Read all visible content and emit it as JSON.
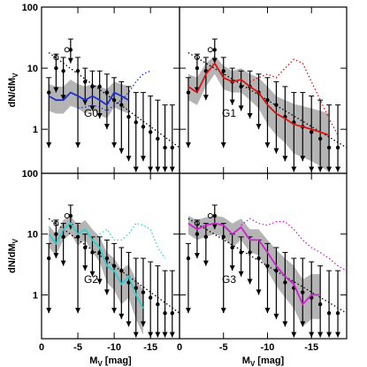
{
  "chart_data": [
    {
      "type": "line",
      "label": "G0",
      "y_label": "dN/dM",
      "y_label_sub": "V",
      "log_y": true,
      "xlim": [
        0,
        -19
      ],
      "ylim": [
        0.19,
        100
      ],
      "xticks": [
        0,
        -5,
        -10,
        -15
      ],
      "yticks": [
        1,
        10,
        100
      ],
      "series": [
        {
          "kind": "points",
          "color": "#000000",
          "x": [
            -1,
            -2,
            -3,
            -4,
            -5,
            -6,
            -7,
            -8,
            -9,
            -10,
            -11,
            -12,
            -13,
            -14,
            -15,
            -16,
            -17,
            -18
          ],
          "values": [
            4,
            10,
            9,
            20,
            9,
            6,
            5,
            5,
            4,
            3,
            2.5,
            1.6,
            1.3,
            1.1,
            0.9,
            0.7,
            0.5,
            0.5
          ],
          "y_low": [
            0.5,
            4,
            3,
            12,
            0.5,
            2.5,
            2,
            1.5,
            1,
            0.5,
            0.4,
            0.3,
            0.2,
            0.3,
            0.2,
            0.2,
            0.2,
            0.2
          ],
          "y_high": [
            7,
            17,
            15,
            30,
            15,
            10,
            9,
            9,
            8,
            7,
            6,
            5,
            4,
            4,
            3.5,
            3,
            2.5,
            2.5
          ]
        },
        {
          "kind": "circles",
          "color": "#000000",
          "x": [
            -2,
            -3.5
          ],
          "values": [
            15,
            20
          ]
        },
        {
          "kind": "powerlaw",
          "color": "#000000",
          "x": [
            -1,
            -19
          ],
          "values": [
            18,
            0.5
          ]
        },
        {
          "kind": "model",
          "color": "#1f2fd0",
          "x": [
            -1,
            -2,
            -3,
            -4,
            -5,
            -6,
            -7,
            -8,
            -9,
            -10,
            -11,
            -12
          ],
          "values": [
            3.5,
            3,
            3,
            4,
            3.5,
            3,
            3.5,
            3,
            2.5,
            4,
            3.5,
            3
          ],
          "band_low": [
            2,
            1.8,
            1.8,
            2.4,
            2.2,
            1.8,
            2.1,
            1.7,
            1.5,
            2.3,
            2,
            1.8
          ],
          "band_high": [
            5.5,
            5,
            5,
            6.5,
            5.5,
            5,
            5.5,
            5,
            4.5,
            6,
            5.5,
            5
          ]
        },
        {
          "kind": "dotted",
          "color": "#1f2fd0",
          "x": [
            -5,
            -6,
            -7,
            -8,
            -9,
            -10,
            -11,
            -12,
            -13,
            -14,
            -15
          ],
          "values": [
            2.2,
            2.3,
            2.5,
            2.3,
            2,
            2.5,
            3,
            4,
            6,
            8,
            9
          ]
        }
      ]
    },
    {
      "type": "line",
      "label": "G1",
      "log_y": true,
      "xlim": [
        0,
        -19
      ],
      "ylim": [
        0.19,
        100
      ],
      "xticks": [
        0,
        -5,
        -10,
        -15
      ],
      "yticks": [
        1,
        10,
        100
      ],
      "series": [
        {
          "kind": "points",
          "color": "#000000",
          "x": [
            -1,
            -2,
            -3,
            -4,
            -5,
            -6,
            -7,
            -8,
            -9,
            -10,
            -11,
            -12,
            -13,
            -14,
            -15,
            -16,
            -17,
            -18
          ],
          "values": [
            4,
            10,
            9,
            20,
            9,
            6,
            5,
            5,
            4,
            3,
            2.5,
            1.6,
            1.3,
            1.1,
            0.9,
            0.7,
            0.5,
            0.5
          ],
          "y_low": [
            0.5,
            4,
            3,
            12,
            0.5,
            2.5,
            2,
            1.5,
            1,
            0.5,
            0.4,
            0.3,
            0.2,
            0.3,
            0.2,
            0.2,
            0.2,
            0.2
          ],
          "y_high": [
            7,
            17,
            15,
            30,
            15,
            10,
            9,
            9,
            8,
            7,
            6,
            5,
            4,
            4,
            3.5,
            3,
            2.5,
            2.5
          ]
        },
        {
          "kind": "circles",
          "color": "#000000",
          "x": [
            -2,
            -3.5
          ],
          "values": [
            15,
            20
          ]
        },
        {
          "kind": "powerlaw",
          "color": "#000000",
          "x": [
            -1,
            -19
          ],
          "values": [
            18,
            0.5
          ]
        },
        {
          "kind": "model",
          "color": "#e01010",
          "x": [
            -1,
            -2,
            -3,
            -4,
            -5,
            -6,
            -7,
            -8,
            -9,
            -10,
            -11,
            -12,
            -13,
            -14,
            -15,
            -16,
            -17
          ],
          "values": [
            5,
            4,
            8,
            12,
            7,
            6,
            6.5,
            5,
            4,
            2.5,
            1.8,
            1.5,
            1.2,
            1.1,
            1,
            0.9,
            0.8
          ],
          "band_low": [
            3,
            2.5,
            5,
            8,
            4.5,
            4,
            4,
            3,
            2.2,
            1.2,
            0.8,
            0.6,
            0.4,
            0.35,
            0.3,
            0.25,
            0.2
          ],
          "band_high": [
            8,
            7,
            12,
            16,
            11,
            9,
            10,
            8,
            7,
            5,
            3.5,
            3,
            2.6,
            2.4,
            2.2,
            2,
            1.8
          ]
        },
        {
          "kind": "dotted",
          "color": "#e01010",
          "x": [
            -8,
            -9,
            -10,
            -11,
            -12,
            -13,
            -14,
            -15,
            -16,
            -17,
            -18
          ],
          "values": [
            6,
            7,
            8,
            7,
            10,
            14,
            12,
            6,
            3,
            1.5,
            0.8
          ]
        }
      ]
    },
    {
      "type": "line",
      "label": "G2",
      "y_label": "dN/dM",
      "y_label_sub": "V",
      "x_label": "M",
      "x_label_sub": "V",
      "x_label_unit": "[mag]",
      "log_y": true,
      "xlim": [
        0,
        -19
      ],
      "ylim": [
        0.19,
        100
      ],
      "xticks": [
        0,
        -5,
        -10,
        -15
      ],
      "yticks": [
        1,
        10,
        100
      ],
      "series": [
        {
          "kind": "points",
          "color": "#000000",
          "x": [
            -1,
            -2,
            -3,
            -4,
            -5,
            -6,
            -7,
            -8,
            -9,
            -10,
            -11,
            -12,
            -13,
            -14,
            -15,
            -16,
            -17,
            -18
          ],
          "values": [
            4,
            10,
            9,
            20,
            9,
            6,
            5,
            5,
            4,
            3,
            2.5,
            1.6,
            1.3,
            1.1,
            0.9,
            0.7,
            0.5,
            0.5
          ],
          "y_low": [
            0.5,
            4,
            3,
            12,
            0.5,
            2.5,
            2,
            1.5,
            1,
            0.5,
            0.4,
            0.3,
            0.2,
            0.3,
            0.2,
            0.2,
            0.2,
            0.2
          ],
          "y_high": [
            7,
            17,
            15,
            30,
            15,
            10,
            9,
            9,
            8,
            7,
            6,
            5,
            4,
            4,
            3.5,
            3,
            2.5,
            2.5
          ]
        },
        {
          "kind": "circles",
          "color": "#000000",
          "x": [
            -2,
            -3.5
          ],
          "values": [
            15,
            20
          ]
        },
        {
          "kind": "powerlaw",
          "color": "#000000",
          "x": [
            -1,
            -19
          ],
          "values": [
            18,
            0.5
          ]
        },
        {
          "kind": "model",
          "color": "#30d0d0",
          "x": [
            -1,
            -2,
            -3,
            -4,
            -5,
            -6,
            -7,
            -8,
            -9,
            -10,
            -11,
            -12,
            -13,
            -14
          ],
          "values": [
            10,
            7,
            12,
            15,
            10,
            12,
            8,
            6,
            3,
            2.5,
            1.5,
            2,
            1,
            0.6
          ],
          "band_low": [
            6,
            4.5,
            8,
            10,
            6.5,
            8,
            5,
            3.5,
            1.6,
            1.2,
            0.7,
            0.9,
            0.4,
            0.22
          ],
          "band_high": [
            14,
            10,
            17,
            20,
            14,
            17,
            12,
            9,
            5,
            4,
            2.6,
            3.2,
            1.8,
            1.2
          ]
        },
        {
          "kind": "dotted",
          "color": "#30d0d0",
          "x": [
            -8,
            -9,
            -10,
            -11,
            -12,
            -13,
            -14,
            -15,
            -16,
            -17
          ],
          "values": [
            10,
            12,
            8,
            8,
            10,
            15,
            14,
            12,
            6,
            4
          ]
        }
      ]
    },
    {
      "type": "line",
      "label": "G3",
      "x_label": "M",
      "x_label_sub": "V",
      "x_label_unit": "[mag]",
      "log_y": true,
      "xlim": [
        0,
        -19
      ],
      "ylim": [
        0.19,
        100
      ],
      "xticks": [
        0,
        -5,
        -10,
        -15
      ],
      "yticks": [
        1,
        10,
        100
      ],
      "series": [
        {
          "kind": "points",
          "color": "#000000",
          "x": [
            -1,
            -2,
            -3,
            -4,
            -5,
            -6,
            -7,
            -8,
            -9,
            -10,
            -11,
            -12,
            -13,
            -14,
            -15,
            -16,
            -17,
            -18
          ],
          "values": [
            4,
            10,
            9,
            20,
            9,
            6,
            5,
            5,
            4,
            3,
            2.5,
            1.6,
            1.3,
            1.1,
            0.9,
            0.7,
            0.5,
            0.5
          ],
          "y_low": [
            0.5,
            4,
            3,
            12,
            0.5,
            2.5,
            2,
            1.5,
            1,
            0.5,
            0.4,
            0.3,
            0.2,
            0.3,
            0.2,
            0.2,
            0.2,
            0.2
          ],
          "y_high": [
            7,
            17,
            15,
            30,
            15,
            10,
            9,
            9,
            8,
            7,
            6,
            5,
            4,
            4,
            3.5,
            3,
            2.5,
            2.5
          ]
        },
        {
          "kind": "circles",
          "color": "#000000",
          "x": [
            -2,
            -3.5
          ],
          "values": [
            15,
            20
          ]
        },
        {
          "kind": "powerlaw",
          "color": "#000000",
          "x": [
            -1,
            -19
          ],
          "values": [
            18,
            0.5
          ]
        },
        {
          "kind": "model",
          "color": "#d020d0",
          "x": [
            -1,
            -2,
            -3,
            -4,
            -5,
            -6,
            -7,
            -8,
            -9,
            -10,
            -11,
            -12,
            -13,
            -14,
            -15,
            -16
          ],
          "values": [
            15,
            12,
            14,
            15,
            14,
            10,
            13,
            8,
            8,
            5,
            3,
            2,
            1.5,
            0.7,
            1,
            1
          ],
          "band_low": [
            10,
            8,
            9,
            10,
            9,
            6,
            8,
            5,
            4.5,
            2.5,
            1.4,
            0.9,
            0.6,
            0.3,
            0.4,
            0.4
          ],
          "band_high": [
            20,
            17,
            19,
            20,
            19,
            15,
            18,
            12,
            12,
            8,
            5.5,
            4,
            3,
            1.8,
            2.2,
            2.2
          ]
        },
        {
          "kind": "dotted",
          "color": "#d020d0",
          "x": [
            -7,
            -8,
            -9,
            -10,
            -11,
            -12,
            -13,
            -14,
            -15,
            -16,
            -17,
            -18,
            -19
          ],
          "values": [
            14,
            18,
            15,
            14,
            16,
            16,
            12,
            8,
            6,
            5,
            4,
            3,
            2.5
          ]
        }
      ]
    }
  ]
}
